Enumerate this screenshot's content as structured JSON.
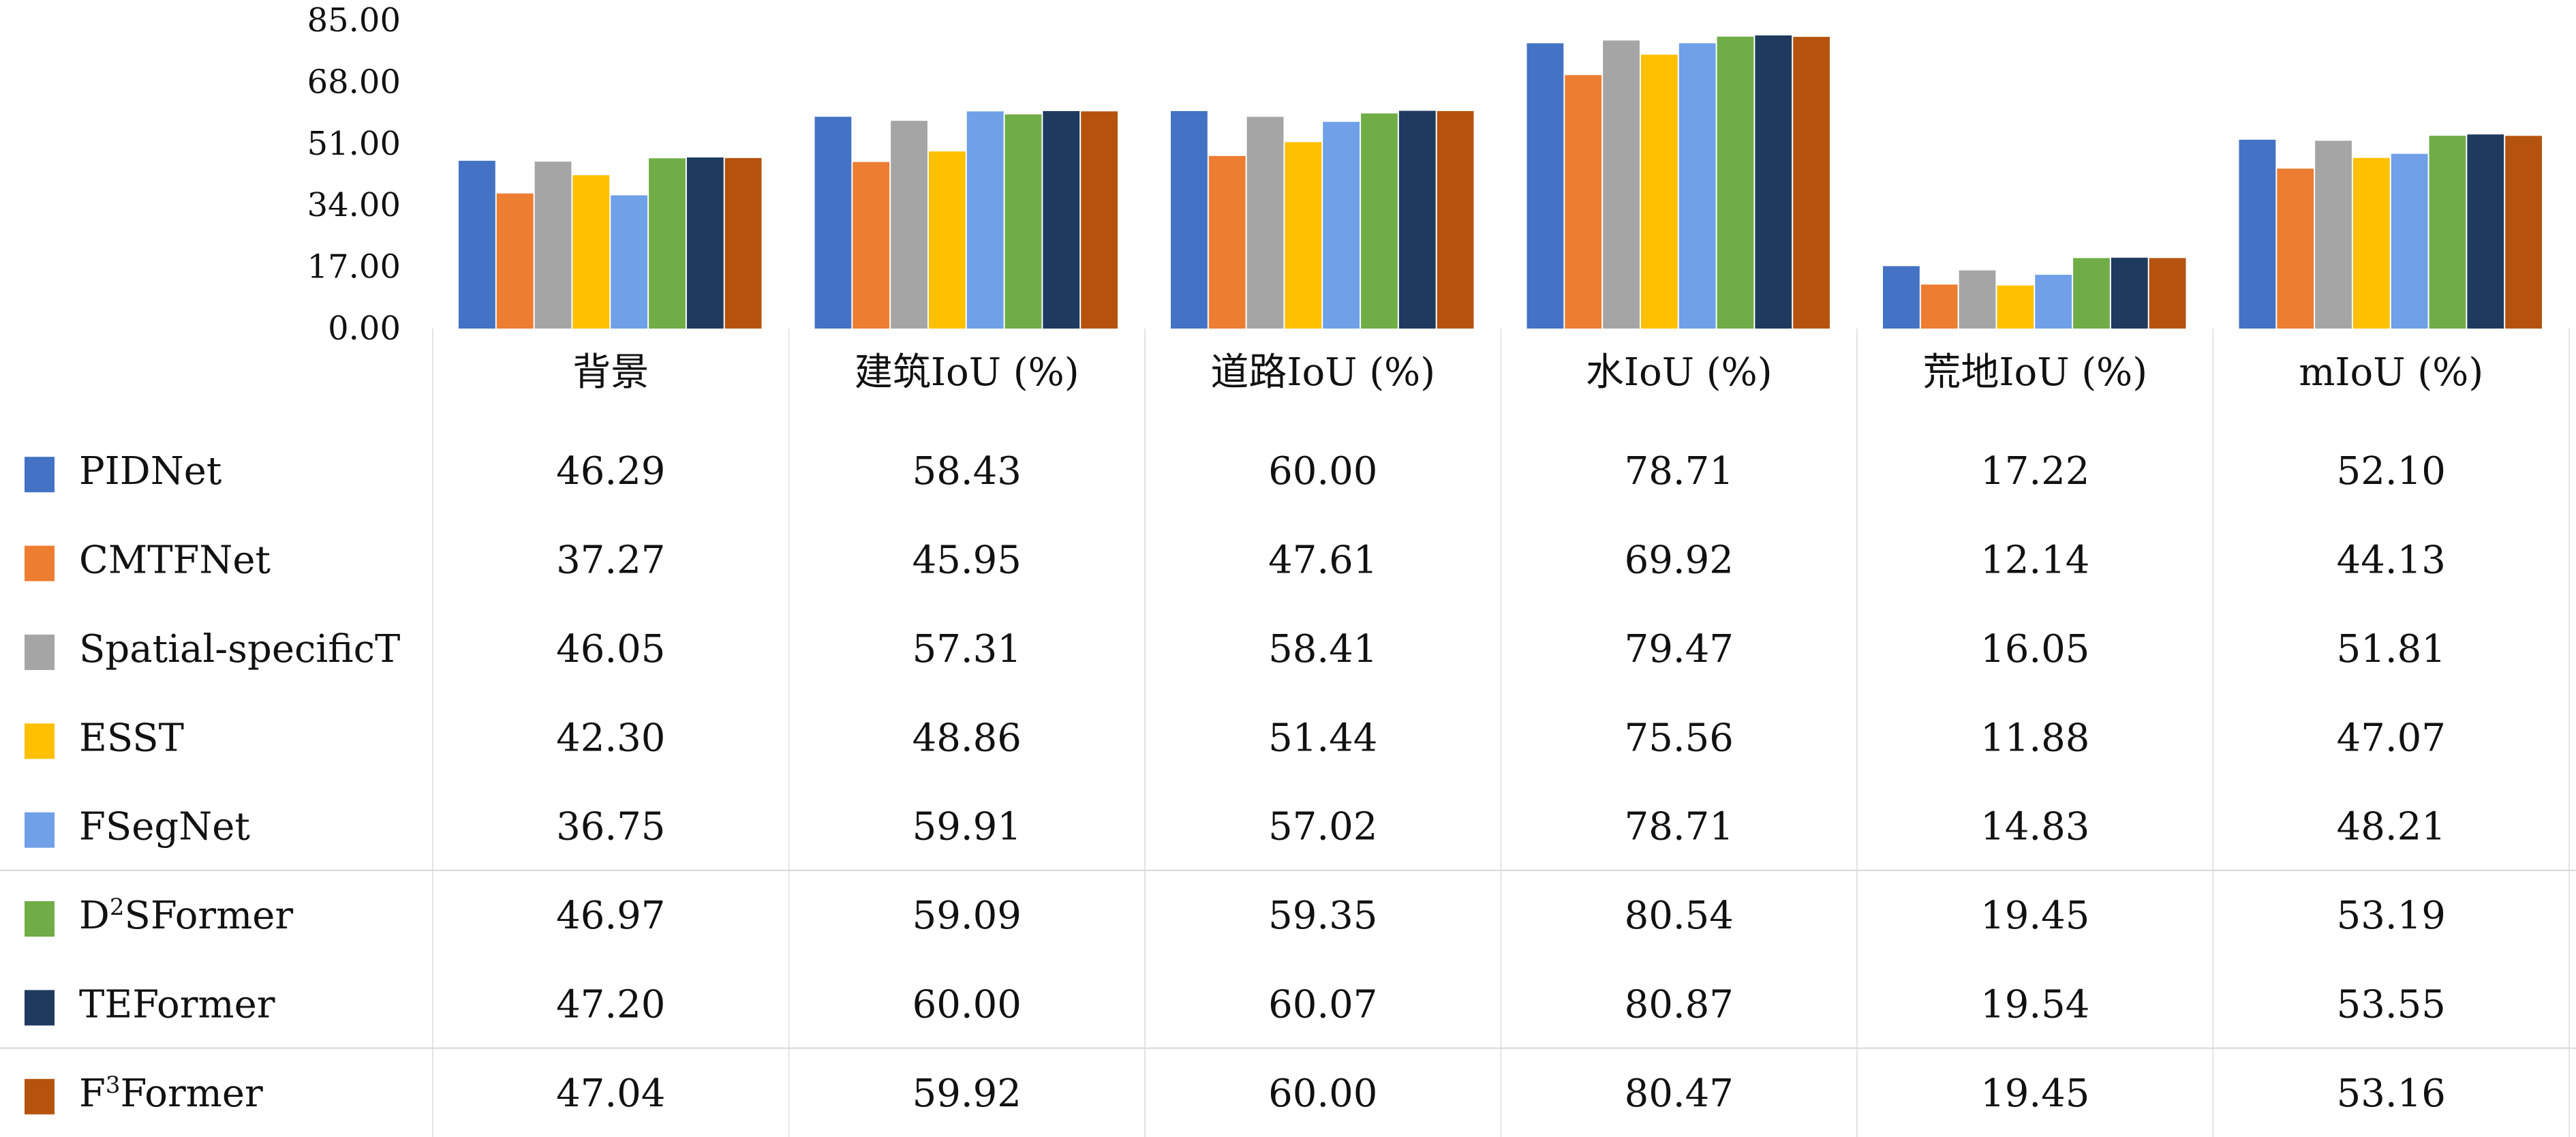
{
  "chart_data": {
    "type": "bar",
    "title": "",
    "xlabel": "",
    "ylabel": "",
    "ylim": [
      0,
      85
    ],
    "yticks": [
      "0.00",
      "17.00",
      "34.00",
      "51.00",
      "68.00",
      "85.00"
    ],
    "categories": [
      "背景",
      "建筑IoU (%)",
      "道路IoU (%)",
      "水IoU (%)",
      "荒地IoU (%)",
      "mIoU (%)"
    ],
    "legend_position": "data-table-left",
    "grid": false,
    "series": [
      {
        "name": "PIDNet",
        "display": [
          "46.29",
          "58.43",
          "60.00",
          "78.71",
          "17.22",
          "52.10"
        ],
        "values": [
          46.29,
          58.43,
          60.0,
          78.71,
          17.22,
          52.1
        ],
        "color": "#4472C4"
      },
      {
        "name": "CMTFNet",
        "display": [
          "37.27",
          "45.95",
          "47.61",
          "69.92",
          "12.14",
          "44.13"
        ],
        "values": [
          37.27,
          45.95,
          47.61,
          69.92,
          12.14,
          44.13
        ],
        "color": "#ED7D31"
      },
      {
        "name": "Spatial-specificT",
        "display": [
          "46.05",
          "57.31",
          "58.41",
          "79.47",
          "16.05",
          "51.81"
        ],
        "values": [
          46.05,
          57.31,
          58.41,
          79.47,
          16.05,
          51.81
        ],
        "color": "#A5A5A5"
      },
      {
        "name": "ESST",
        "display": [
          "42.30",
          "48.86",
          "51.44",
          "75.56",
          "11.88",
          "47.07"
        ],
        "values": [
          42.3,
          48.86,
          51.44,
          75.56,
          11.88,
          47.07
        ],
        "color": "#FFC000"
      },
      {
        "name": "FSegNet",
        "display": [
          "36.75",
          "59.91",
          "57.02",
          "78.71",
          "14.83",
          "48.21"
        ],
        "values": [
          36.75,
          59.91,
          57.02,
          78.71,
          14.83,
          48.21
        ],
        "color": "#6FA0E8"
      },
      {
        "name": "D²SFormer",
        "name_base": "D",
        "name_sup": "2",
        "name_rest": "SFormer",
        "display": [
          "46.97",
          "59.09",
          "59.35",
          "80.54",
          "19.45",
          "53.19"
        ],
        "values": [
          46.97,
          59.09,
          59.35,
          80.54,
          19.45,
          53.19
        ],
        "color": "#70AD47"
      },
      {
        "name": "TEFormer",
        "display": [
          "47.20",
          "60.00",
          "60.07",
          "80.87",
          "19.54",
          "53.55"
        ],
        "values": [
          47.2,
          60.0,
          60.07,
          80.87,
          19.54,
          53.55
        ],
        "color": "#1F3A5F"
      },
      {
        "name": "F³Former",
        "name_base": "F",
        "name_sup": "3",
        "name_rest": "Former",
        "display": [
          "47.04",
          "59.92",
          "60.00",
          "80.47",
          "19.45",
          "53.16"
        ],
        "values": [
          47.04,
          59.92,
          60.0,
          80.47,
          19.45,
          53.16
        ],
        "color": "#B5530E"
      }
    ]
  }
}
